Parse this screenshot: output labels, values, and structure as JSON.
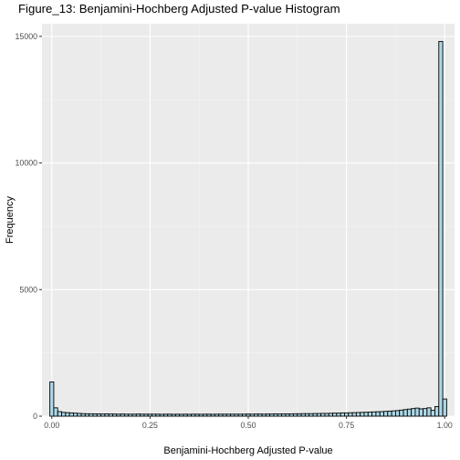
{
  "chart_data": {
    "type": "bar",
    "title": "Figure_13: Benjamini-Hochberg Adjusted P-value Histogram",
    "xlabel": "Benjamini-Hochberg Adjusted P-value",
    "ylabel": "Frequency",
    "xlim": [
      -0.025,
      1.025
    ],
    "ylim": [
      0,
      15500
    ],
    "x_ticks": [
      0.0,
      0.25,
      0.5,
      0.75,
      1.0
    ],
    "x_tick_labels": [
      "0.00",
      "0.25",
      "0.50",
      "0.75",
      "1.00"
    ],
    "y_ticks": [
      0,
      5000,
      10000,
      15000
    ],
    "y_tick_labels": [
      "0",
      "5000",
      "10000",
      "15000"
    ],
    "bin_width": 0.01,
    "bin_start": -0.005,
    "values": [
      1350,
      330,
      180,
      150,
      140,
      130,
      120,
      110,
      100,
      95,
      95,
      90,
      90,
      85,
      90,
      85,
      85,
      80,
      85,
      80,
      80,
      80,
      85,
      80,
      80,
      80,
      80,
      80,
      75,
      80,
      80,
      75,
      80,
      75,
      80,
      75,
      80,
      80,
      75,
      80,
      80,
      75,
      80,
      80,
      80,
      80,
      80,
      80,
      80,
      80,
      85,
      80,
      85,
      85,
      80,
      85,
      85,
      90,
      85,
      90,
      90,
      90,
      95,
      95,
      100,
      100,
      100,
      105,
      105,
      110,
      110,
      115,
      120,
      120,
      130,
      130,
      135,
      140,
      145,
      150,
      155,
      160,
      170,
      175,
      180,
      190,
      200,
      210,
      220,
      240,
      260,
      280,
      300,
      320,
      290,
      300,
      330,
      230,
      380,
      14800,
      680
    ],
    "fill_color": "#add8e6",
    "edge_color": "#000000",
    "panel_color": "#ebebeb",
    "grid": true
  }
}
